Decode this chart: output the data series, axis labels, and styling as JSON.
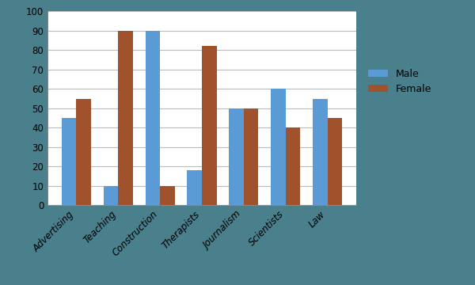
{
  "categories": [
    "Advertising",
    "Teaching",
    "Construction",
    "Therapists",
    "Journalism",
    "Scientists",
    "Law"
  ],
  "male_values": [
    45,
    10,
    90,
    18,
    50,
    60,
    55
  ],
  "female_values": [
    55,
    90,
    10,
    82,
    50,
    40,
    45
  ],
  "male_color": "#5B9BD5",
  "female_color": "#A0522D",
  "legend_labels": [
    "Male",
    "Female"
  ],
  "ylim": [
    0,
    100
  ],
  "yticks": [
    0,
    10,
    20,
    30,
    40,
    50,
    60,
    70,
    80,
    90,
    100
  ],
  "bar_width": 0.35,
  "plot_bg_color": "#FFFFFF",
  "figure_bg_color": "#4A7F8C",
  "grid_color": "#BBBBBB",
  "tick_label_fontsize": 8.5,
  "legend_fontsize": 9,
  "legend_bg_color": "#4A7F8C",
  "legend_text_color": "#000000"
}
